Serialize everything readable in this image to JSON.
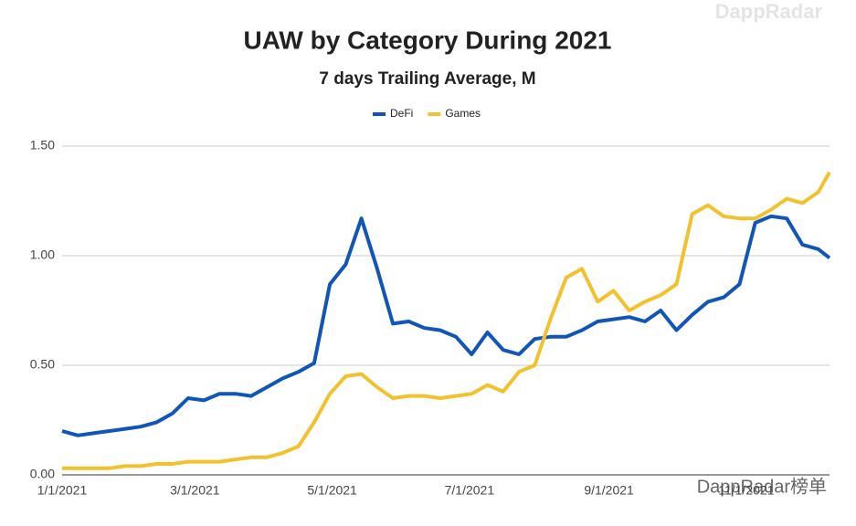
{
  "chart_data": {
    "type": "line",
    "title": "UAW by Category During 2021",
    "subtitle": "7 days Trailing Average, M",
    "watermark": "DappRadar",
    "footer_watermark": "DappRadar榜单",
    "x": [
      "1/1/2021",
      "1/8/2021",
      "1/15/2021",
      "1/22/2021",
      "1/29/2021",
      "2/5/2021",
      "2/12/2021",
      "2/19/2021",
      "2/26/2021",
      "3/5/2021",
      "3/12/2021",
      "3/19/2021",
      "3/26/2021",
      "4/2/2021",
      "4/9/2021",
      "4/16/2021",
      "4/23/2021",
      "4/30/2021",
      "5/7/2021",
      "5/14/2021",
      "5/21/2021",
      "5/28/2021",
      "6/4/2021",
      "6/11/2021",
      "6/18/2021",
      "6/25/2021",
      "7/2/2021",
      "7/9/2021",
      "7/16/2021",
      "7/23/2021",
      "7/30/2021",
      "8/6/2021",
      "8/13/2021",
      "8/20/2021",
      "8/27/2021",
      "9/3/2021",
      "9/10/2021",
      "9/17/2021",
      "9/24/2021",
      "10/1/2021",
      "10/8/2021",
      "10/15/2021",
      "10/22/2021",
      "10/29/2021",
      "11/5/2021",
      "11/12/2021",
      "11/19/2021",
      "11/26/2021",
      "12/3/2021",
      "12/8/2021"
    ],
    "series": [
      {
        "name": "DeFi",
        "color": "#1155b8",
        "values": [
          0.2,
          0.18,
          0.19,
          0.2,
          0.21,
          0.22,
          0.24,
          0.28,
          0.35,
          0.34,
          0.37,
          0.37,
          0.36,
          0.4,
          0.44,
          0.47,
          0.51,
          0.87,
          0.96,
          1.17,
          0.94,
          0.69,
          0.7,
          0.67,
          0.66,
          0.63,
          0.55,
          0.65,
          0.57,
          0.55,
          0.62,
          0.63,
          0.63,
          0.66,
          0.7,
          0.71,
          0.72,
          0.7,
          0.75,
          0.66,
          0.73,
          0.79,
          0.81,
          0.87,
          1.15,
          1.18,
          1.17,
          1.05,
          1.03,
          0.99
        ]
      },
      {
        "name": "Games",
        "color": "#f2c12e",
        "values": [
          0.03,
          0.03,
          0.03,
          0.03,
          0.04,
          0.04,
          0.05,
          0.05,
          0.06,
          0.06,
          0.06,
          0.07,
          0.08,
          0.08,
          0.1,
          0.13,
          0.24,
          0.37,
          0.45,
          0.46,
          0.4,
          0.35,
          0.36,
          0.36,
          0.35,
          0.36,
          0.37,
          0.41,
          0.38,
          0.47,
          0.5,
          0.71,
          0.9,
          0.94,
          0.79,
          0.84,
          0.75,
          0.79,
          0.82,
          0.87,
          1.19,
          1.23,
          1.18,
          1.17,
          1.17,
          1.21,
          1.26,
          1.24,
          1.29,
          1.38
        ]
      }
    ],
    "xlim": [
      "1/1/2021",
      "12/8/2021"
    ],
    "xticks": [
      "1/1/2021",
      "3/1/2021",
      "5/1/2021",
      "7/1/2021",
      "9/1/2021",
      "11/1/2021"
    ],
    "ylim": [
      0,
      1.5
    ],
    "yticks": [
      {
        "value": 0,
        "label": "0.00"
      },
      {
        "value": 0.5,
        "label": "0.50"
      },
      {
        "value": 1,
        "label": "1.00"
      },
      {
        "value": 1.5,
        "label": "1.50"
      }
    ],
    "grid": true
  }
}
